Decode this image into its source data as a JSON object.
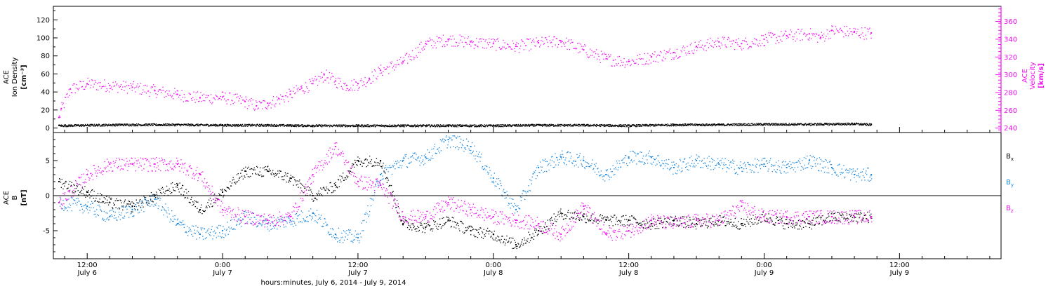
{
  "colors": {
    "density": "#000000",
    "velocity": "#ee11ee",
    "bx": "#000000",
    "by": "#1a88dd",
    "bz": "#ee11ee",
    "axis": "#000000"
  },
  "time_axis": {
    "xlim_hours": [
      -3,
      81
    ],
    "xlabel": "hours:minutes, July  6, 2014 - July  9, 2014",
    "ticks": [
      {
        "hour": 0,
        "time": "12:00",
        "date": "July 6"
      },
      {
        "hour": 12,
        "time": "0:00",
        "date": "July 7"
      },
      {
        "hour": 24,
        "time": "12:00",
        "date": "July 7"
      },
      {
        "hour": 36,
        "time": "0:00",
        "date": "July 8"
      },
      {
        "hour": 48,
        "time": "12:00",
        "date": "July 8"
      },
      {
        "hour": 60,
        "time": "0:00",
        "date": "July 9"
      },
      {
        "hour": 72,
        "time": "12:00",
        "date": "July 9"
      }
    ]
  },
  "top_panel": {
    "left_axis": {
      "label_lines": [
        "ACE",
        "Ion Density",
        "[cm⁻³]"
      ],
      "ylim": [
        -5,
        135
      ],
      "ticks": [
        "0",
        "20",
        "40",
        "60",
        "80",
        "100",
        "120"
      ],
      "tick_values": [
        0,
        20,
        40,
        60,
        80,
        100,
        120
      ]
    },
    "right_axis": {
      "label_lines": [
        "ACE",
        "Velocity",
        "[km/s]"
      ],
      "ylim": [
        235,
        377
      ],
      "ticks": [
        "240",
        "260",
        "280",
        "300",
        "320",
        "340",
        "360"
      ],
      "tick_values": [
        240,
        260,
        280,
        300,
        320,
        340,
        360
      ]
    }
  },
  "bottom_panel": {
    "left_axis": {
      "label_lines": [
        "ACE",
        "B",
        "[nT]"
      ],
      "ylim": [
        -9,
        9
      ],
      "ticks": [
        "-5",
        "0",
        "5"
      ],
      "tick_values": [
        -5,
        0,
        5
      ]
    },
    "legend": [
      {
        "base": "B",
        "sub": "x"
      },
      {
        "base": "B",
        "sub": "y"
      },
      {
        "base": "B",
        "sub": "z"
      }
    ]
  },
  "chart_data": [
    {
      "type": "scatter",
      "title": "",
      "xlabel": "hours:minutes, July  6, 2014 - July  9, 2014",
      "ylabel": "ACE Ion Density [cm⁻³]",
      "y2label": "ACE Velocity [km/s]",
      "xlim": [
        -3,
        81
      ],
      "ylim": [
        -5,
        135
      ],
      "y2lim": [
        235,
        377
      ],
      "grid": false,
      "series": [
        {
          "name": "Ion Density",
          "axis": "left",
          "x": [
            -2.5,
            3,
            8,
            12,
            16,
            20,
            24,
            28,
            32,
            36,
            40,
            44,
            48,
            52,
            56,
            60,
            64,
            68,
            69.5
          ],
          "y": [
            3,
            4,
            4,
            3.5,
            3.5,
            3,
            3,
            3,
            3,
            3,
            3.5,
            3.5,
            3,
            4,
            4,
            4.5,
            4.5,
            5,
            4
          ]
        },
        {
          "name": "Velocity",
          "axis": "right",
          "x": [
            -2.5,
            -2.3,
            -1.5,
            0,
            2,
            4,
            6,
            8,
            10,
            12,
            14,
            15,
            16,
            17,
            18,
            19,
            20,
            21,
            22,
            23,
            24,
            25,
            26,
            28,
            30,
            32,
            34,
            36,
            38,
            40,
            42,
            44,
            46,
            48,
            50,
            52,
            54,
            56,
            58,
            60,
            62,
            64,
            65,
            66,
            68,
            69.5
          ],
          "y": [
            252,
            262,
            284,
            290,
            288,
            286,
            282,
            278,
            274,
            275,
            270,
            265,
            268,
            273,
            278,
            285,
            290,
            300,
            293,
            288,
            290,
            296,
            305,
            315,
            335,
            340,
            337,
            335,
            332,
            336,
            338,
            328,
            318,
            315,
            320,
            325,
            332,
            337,
            335,
            340,
            344,
            346,
            342,
            350,
            348,
            347
          ]
        }
      ]
    },
    {
      "type": "scatter",
      "title": "",
      "xlabel": "hours:minutes, July  6, 2014 - July  9, 2014",
      "ylabel": "ACE B [nT]",
      "xlim": [
        -3,
        81
      ],
      "ylim": [
        -9,
        9
      ],
      "grid": false,
      "series": [
        {
          "name": "Bx",
          "x": [
            -2.5,
            0,
            2,
            4,
            6,
            8,
            10,
            12,
            14,
            16,
            18,
            20,
            22,
            24,
            26,
            28,
            30,
            32,
            34,
            36,
            38,
            40,
            42,
            44,
            46,
            48,
            50,
            52,
            54,
            56,
            58,
            60,
            62,
            64,
            66,
            68,
            69.5
          ],
          "y": [
            2,
            0.5,
            -1,
            -1.5,
            0,
            1.5,
            -2,
            0.5,
            3.5,
            3.5,
            2.5,
            0,
            1.5,
            5,
            5,
            -4,
            -4.5,
            -3.5,
            -5,
            -5.5,
            -7,
            -5,
            -2.5,
            -3,
            -3.5,
            -3.5,
            -4,
            -3.5,
            -4,
            -3.5,
            -4,
            -3,
            -4,
            -4,
            -3,
            -3,
            -3
          ]
        },
        {
          "name": "By",
          "x": [
            -2.5,
            0,
            2,
            4,
            6,
            8,
            10,
            12,
            14,
            16,
            18,
            20,
            22,
            24,
            26,
            28,
            30,
            32,
            34,
            36,
            38,
            40,
            42,
            44,
            46,
            48,
            50,
            52,
            54,
            56,
            58,
            60,
            62,
            64,
            66,
            68,
            69.5
          ],
          "y": [
            -1,
            -1.5,
            -3,
            -2,
            -0.5,
            -4,
            -5.5,
            -5,
            -3,
            -4,
            -3.5,
            -2.5,
            -5.5,
            -6,
            3,
            5,
            5.5,
            8,
            7,
            2.5,
            -2,
            4,
            5.5,
            5,
            3,
            5.5,
            5.5,
            4,
            5,
            4.5,
            4,
            4.5,
            4,
            5,
            4,
            3,
            3
          ]
        },
        {
          "name": "Bz",
          "x": [
            -2.5,
            0,
            2,
            4,
            6,
            8,
            10,
            12,
            14,
            16,
            18,
            20,
            22,
            24,
            26,
            28,
            30,
            32,
            34,
            36,
            38,
            40,
            42,
            44,
            46,
            48,
            50,
            52,
            54,
            56,
            58,
            60,
            62,
            64,
            66,
            68,
            69.5
          ],
          "y": [
            -1,
            3,
            4.5,
            4.5,
            4.5,
            4.5,
            3,
            -2,
            -3,
            -3.5,
            -3,
            3,
            7,
            2,
            1.5,
            -3,
            -3,
            -1,
            -2,
            -3,
            -3.5,
            -4,
            -5.5,
            -1.5,
            -5.5,
            -5,
            -3.5,
            -4,
            -3.5,
            -3.5,
            -1.5,
            -3,
            -3,
            -3,
            -3,
            -3,
            -3
          ]
        }
      ]
    }
  ]
}
